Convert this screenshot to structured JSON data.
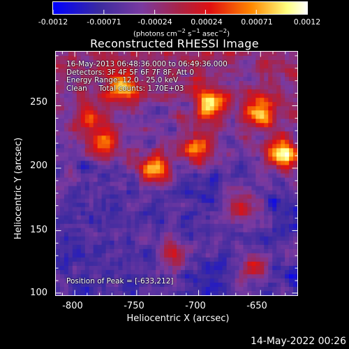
{
  "colorbar": {
    "ticks": [
      "-0.0012",
      "-0.00071",
      "-0.00024",
      "0.00024",
      "0.00071",
      "0.0012"
    ],
    "unit_html": "(photons cm<sup>−2</sup> s<sup>−1</sup> asec<sup>−2</sup>)"
  },
  "title": "Reconstructed RHESSI Image",
  "info": {
    "line1": "16-May-2013 06:48:36.000 to 06:49:36.000",
    "line2": "Detectors: 3F 4F 5F 6F 7F 8F, Att 0",
    "line3": "Energy Range: 12.0 - 25.0 keV",
    "line4": "Clean     Total counts: 1.70E+03"
  },
  "peak_text": "Position of Peak = [-633,212]",
  "timestamp": "14-May-2022 00:26",
  "chart_data": {
    "type": "heatmap",
    "title": "Reconstructed RHESSI Image",
    "xlabel": "Heliocentric X (arcsec)",
    "ylabel": "Heliocentric Y (arcsec)",
    "xticks": [
      "-800",
      "-750",
      "-700",
      "-650"
    ],
    "yticks": [
      "100",
      "150",
      "200",
      "250"
    ],
    "xlim": [
      -815,
      -620
    ],
    "ylim": [
      98,
      293
    ],
    "peak": [
      -633,
      212
    ],
    "color_range": [
      -0.0012,
      0.0012
    ],
    "colormap": "blue-purple-red-yellow-white",
    "colormap_stops": [
      "#0000ff",
      "#3a2aa0",
      "#7a3aa0",
      "#aa2244",
      "#e01010",
      "#ff8800",
      "#ffff80",
      "#ffffff"
    ],
    "hotspots": [
      {
        "x": -633,
        "y": 212,
        "intensity": 1.0
      },
      {
        "x": -690,
        "y": 252,
        "intensity": 0.78
      },
      {
        "x": -735,
        "y": 200,
        "intensity": 0.82
      },
      {
        "x": -760,
        "y": 265,
        "intensity": 0.7
      },
      {
        "x": -700,
        "y": 215,
        "intensity": 0.72
      },
      {
        "x": -650,
        "y": 245,
        "intensity": 0.8
      },
      {
        "x": -775,
        "y": 220,
        "intensity": 0.62
      },
      {
        "x": -665,
        "y": 170,
        "intensity": 0.55
      },
      {
        "x": -790,
        "y": 240,
        "intensity": 0.5
      },
      {
        "x": -720,
        "y": 130,
        "intensity": 0.45
      },
      {
        "x": -655,
        "y": 120,
        "intensity": 0.5
      }
    ]
  }
}
